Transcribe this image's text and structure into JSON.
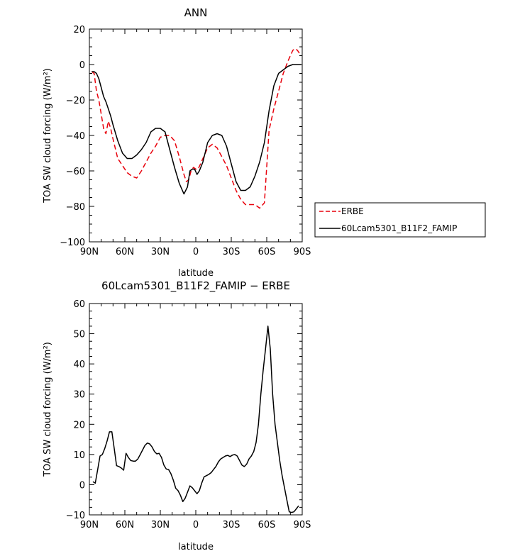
{
  "chart_data": [
    {
      "type": "line",
      "title": "ANN",
      "xlabel": "latitude",
      "ylabel": "TOA SW cloud forcing (W/m²)",
      "xlim": [
        90,
        -90
      ],
      "ylim": [
        -100,
        20
      ],
      "xticks": [
        {
          "value": 90,
          "label": "90N"
        },
        {
          "value": 60,
          "label": "60N"
        },
        {
          "value": 30,
          "label": "30N"
        },
        {
          "value": 0,
          "label": "0"
        },
        {
          "value": -30,
          "label": "30S"
        },
        {
          "value": -60,
          "label": "60S"
        },
        {
          "value": -90,
          "label": "90S"
        }
      ],
      "yticks": [
        20,
        0,
        -20,
        -40,
        -60,
        -80,
        -100
      ],
      "legend_position": "right",
      "series": [
        {
          "name": "ERBE",
          "color": "#e8000b",
          "style": "dashed",
          "x": [
            88,
            86,
            84,
            82,
            80,
            78,
            76,
            74,
            72,
            70,
            66,
            62,
            58,
            54,
            50,
            46,
            42,
            38,
            34,
            30,
            26,
            22,
            18,
            14,
            10,
            8,
            6,
            4,
            2,
            0,
            -2,
            -4,
            -6,
            -10,
            -14,
            -18,
            -22,
            -26,
            -30,
            -34,
            -38,
            -42,
            -46,
            -50,
            -54,
            -58,
            -62,
            -66,
            -70,
            -74,
            -78,
            -82,
            -84,
            -86,
            -88
          ],
          "y": [
            -4,
            -5,
            -15,
            -20,
            -28,
            -36,
            -39,
            -32,
            -36,
            -42,
            -53,
            -57,
            -61,
            -63,
            -64,
            -60,
            -55,
            -50,
            -46,
            -41,
            -40,
            -40,
            -43,
            -52,
            -62,
            -66,
            -65,
            -60,
            -58,
            -59,
            -59,
            -56,
            -53,
            -47,
            -45,
            -47,
            -52,
            -57,
            -64,
            -71,
            -76,
            -79,
            -79,
            -79,
            -81,
            -78,
            -37,
            -25,
            -15,
            -5,
            2,
            8,
            9,
            8,
            6
          ]
        },
        {
          "name": "60Lcam5301_B11F2_FAMIP",
          "color": "#000000",
          "style": "solid",
          "x": [
            88,
            86,
            84,
            82,
            80,
            78,
            76,
            74,
            72,
            70,
            66,
            62,
            58,
            54,
            50,
            46,
            42,
            38,
            34,
            30,
            26,
            22,
            18,
            14,
            10,
            7,
            5,
            3,
            1,
            -1,
            -3,
            -6,
            -10,
            -14,
            -18,
            -22,
            -26,
            -30,
            -34,
            -38,
            -42,
            -46,
            -50,
            -54,
            -58,
            -62,
            -66,
            -70,
            -74,
            -78,
            -82,
            -86,
            -89
          ],
          "y": [
            -4,
            -4,
            -5,
            -8,
            -13,
            -18,
            -21,
            -25,
            -29,
            -34,
            -43,
            -50,
            -53,
            -53,
            -51,
            -48,
            -44,
            -38,
            -36,
            -36,
            -38,
            -48,
            -58,
            -67,
            -73,
            -69,
            -60,
            -59,
            -59,
            -62,
            -60,
            -55,
            -44,
            -40,
            -39,
            -40,
            -46,
            -56,
            -66,
            -71,
            -71,
            -69,
            -63,
            -55,
            -44,
            -26,
            -12,
            -5,
            -3,
            -1,
            0,
            0,
            0
          ]
        }
      ]
    },
    {
      "type": "line",
      "title": "60Lcam5301_B11F2_FAMIP − ERBE",
      "xlabel": "latitude",
      "ylabel": "TOA SW cloud forcing (W/m²)",
      "xlim": [
        90,
        -90
      ],
      "ylim": [
        -10,
        60
      ],
      "xticks": [
        {
          "value": 90,
          "label": "90N"
        },
        {
          "value": 60,
          "label": "60N"
        },
        {
          "value": 30,
          "label": "30N"
        },
        {
          "value": 0,
          "label": "0"
        },
        {
          "value": -30,
          "label": "30S"
        },
        {
          "value": -60,
          "label": "60S"
        },
        {
          "value": -90,
          "label": "90S"
        }
      ],
      "yticks": [
        60,
        50,
        40,
        30,
        20,
        10,
        0,
        -10
      ],
      "series": [
        {
          "name": "",
          "color": "#000000",
          "style": "solid",
          "x": [
            87,
            85,
            83,
            81,
            79,
            77,
            75,
            73,
            71,
            69,
            67,
            65,
            63,
            61,
            59,
            57,
            55,
            53,
            51,
            49,
            47,
            45,
            43,
            41,
            39,
            37,
            35,
            33,
            31,
            29,
            27,
            25,
            23,
            21,
            19,
            17,
            15,
            13,
            11,
            9,
            7,
            5,
            3,
            1,
            -1,
            -3,
            -5,
            -7,
            -9,
            -11,
            -13,
            -15,
            -17,
            -19,
            -21,
            -23,
            -25,
            -27,
            -29,
            -31,
            -33,
            -35,
            -37,
            -39,
            -41,
            -43,
            -45,
            -47,
            -49,
            -51,
            -53,
            -55,
            -57,
            -59,
            -61,
            -63,
            -65,
            -67,
            -69,
            -71,
            -73,
            -75,
            -77,
            -79,
            -81,
            -83,
            -85,
            -87
          ],
          "y": [
            1,
            0.5,
            5,
            9.5,
            10,
            12,
            14.5,
            17.5,
            17.5,
            12,
            6.3,
            6,
            5.5,
            4.8,
            10.4,
            9,
            8,
            7.8,
            7.8,
            8.5,
            10,
            11.5,
            13,
            13.8,
            13.5,
            12.5,
            11,
            10.2,
            10.4,
            9,
            6.5,
            5.2,
            5,
            3.6,
            1.5,
            -1.2,
            -2,
            -3.5,
            -5.6,
            -4.5,
            -2.5,
            -0.4,
            -1,
            -2,
            -3,
            -2,
            0.5,
            2.6,
            3,
            3.4,
            4,
            5,
            6,
            7.5,
            8.5,
            9,
            9.5,
            9.7,
            9.3,
            9.8,
            10,
            9.5,
            8,
            6.5,
            6,
            6.8,
            8.5,
            9.5,
            11,
            14,
            20,
            30,
            38,
            45,
            52.5,
            45,
            30,
            20,
            14,
            8,
            3,
            -1,
            -5,
            -9,
            -9.2,
            -9,
            -8,
            -7
          ]
        }
      ]
    }
  ]
}
